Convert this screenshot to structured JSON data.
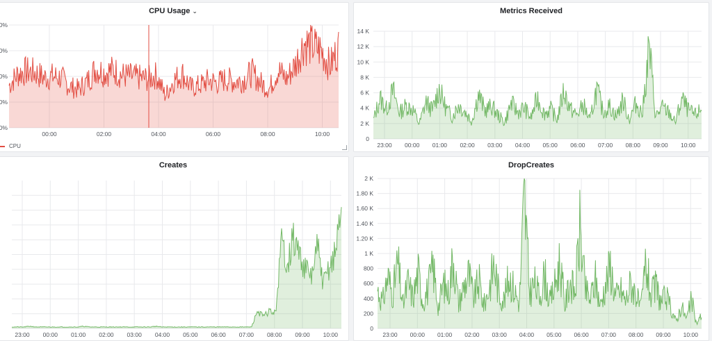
{
  "panels": {
    "cpu": {
      "title": "CPU Usage",
      "caret": "⌄",
      "legend": "CPU"
    },
    "metrics": {
      "title": "Metrics Received"
    },
    "creates": {
      "title": "Creates"
    },
    "dropcreates": {
      "title": "DropCreates"
    }
  },
  "colors": {
    "cpu": "#e24d42",
    "green": "#73b866"
  },
  "chart_data": [
    {
      "type": "line",
      "title": "CPU Usage",
      "x_ticks": [
        "00:00",
        "02:00",
        "04:00",
        "06:00",
        "08:00",
        "10:00"
      ],
      "y_ticks": [
        "0%",
        "0%",
        "0%",
        "0%",
        "0%"
      ],
      "series": [
        {
          "name": "CPU",
          "values": [
            3.3,
            4.2,
            4.4,
            4.3,
            3.9,
            4.0,
            3.9,
            3.2,
            3.0,
            3.6,
            4.6,
            4.3,
            4.5,
            4.1,
            4.0,
            3.9,
            3.8,
            4.1,
            2.5,
            3.7,
            4.2,
            3.1,
            3.3,
            3.7,
            3.5,
            3.8,
            3.6,
            3.7,
            4.3,
            3.5,
            3.0,
            4.5,
            3.8,
            4.9,
            6.6,
            6.4,
            6.0,
            4.8,
            6.2
          ]
        }
      ],
      "ylim": [
        0,
        8
      ]
    },
    {
      "type": "line",
      "title": "Metrics Received",
      "x_ticks": [
        "23:00",
        "00:00",
        "01:00",
        "02:00",
        "03:00",
        "04:00",
        "05:00",
        "06:00",
        "07:00",
        "08:00",
        "09:00",
        "10:00"
      ],
      "y_ticks": [
        "0",
        "2 K",
        "4 K",
        "6 K",
        "8 K",
        "10 K",
        "12 K",
        "14 K"
      ],
      "series": [
        {
          "values": [
            2.5,
            5.5,
            4.0,
            6.5,
            3.5,
            4.5,
            4.0,
            2.0,
            5.0,
            3.8,
            6.8,
            4.2,
            3.0,
            4.6,
            3.6,
            2.4,
            6.0,
            3.8,
            4.4,
            3.2,
            2.2,
            4.8,
            3.6,
            4.2,
            2.8,
            5.6,
            3.4,
            4.0,
            2.6,
            6.5,
            4.0,
            3.2,
            4.6,
            2.4,
            6.8,
            3.6,
            4.4,
            3.0,
            5.2,
            2.6,
            4.8,
            3.4,
            12.5,
            3.0,
            4.2,
            3.6,
            2.2,
            5.4,
            3.8,
            3.2,
            4.0
          ]
        }
      ],
      "ylim": [
        0,
        15
      ]
    },
    {
      "type": "line",
      "title": "Creates",
      "x_ticks": [
        "23:00",
        "00:00",
        "01:00",
        "02:00",
        "03:00",
        "04:00",
        "05:00",
        "06:00",
        "07:00",
        "08:00",
        "09:00",
        "10:00"
      ],
      "series": [
        {
          "values": [
            0.01,
            0.01,
            0.01,
            0.015,
            0.01,
            0.01,
            0.01,
            0.01,
            0.01,
            0.01,
            0.01,
            0.01,
            0.015,
            0.01,
            0.01,
            0.01,
            0.01,
            0.01,
            0.01,
            0.01,
            0.01,
            0.01,
            0.01,
            0.01,
            0.015,
            0.01,
            0.01,
            0.01,
            0.01,
            0.01,
            0.01,
            0.01,
            0.01,
            0.01,
            0.01,
            0.01,
            0.01,
            0.01,
            0.01,
            0.01,
            0.01,
            0.12,
            0.08,
            0.12,
            0.1,
            0.58,
            0.45,
            0.6,
            0.5,
            0.4,
            0.35,
            0.55,
            0.3,
            0.42,
            0.5,
            0.85
          ]
        }
      ],
      "ylim": [
        0,
        1
      ]
    },
    {
      "type": "line",
      "title": "DropCreates",
      "x_ticks": [
        "23:00",
        "00:00",
        "01:00",
        "02:00",
        "03:00",
        "04:00",
        "05:00",
        "06:00",
        "07:00",
        "08:00",
        "09:00",
        "10:00"
      ],
      "y_ticks": [
        "0",
        "200",
        "400",
        "600",
        "800",
        "1 K",
        "1.20 K",
        "1.40 K",
        "1.60 K",
        "1.80 K",
        "2 K"
      ],
      "series": [
        {
          "values": [
            520,
            350,
            700,
            460,
            880,
            300,
            620,
            410,
            750,
            360,
            540,
            820,
            280,
            600,
            470,
            980,
            330,
            560,
            720,
            400,
            640,
            310,
            520,
            870,
            450,
            380,
            700,
            520,
            330,
            1780,
            480,
            600,
            420,
            720,
            350,
            560,
            900,
            300,
            640,
            470,
            1350,
            520,
            380,
            660,
            300,
            580,
            840,
            420,
            520,
            360,
            610,
            470,
            250,
            880,
            430,
            560,
            350,
            420,
            260,
            90,
            310,
            120,
            380,
            60,
            180
          ]
        }
      ],
      "ylim": [
        0,
        2000
      ]
    }
  ]
}
